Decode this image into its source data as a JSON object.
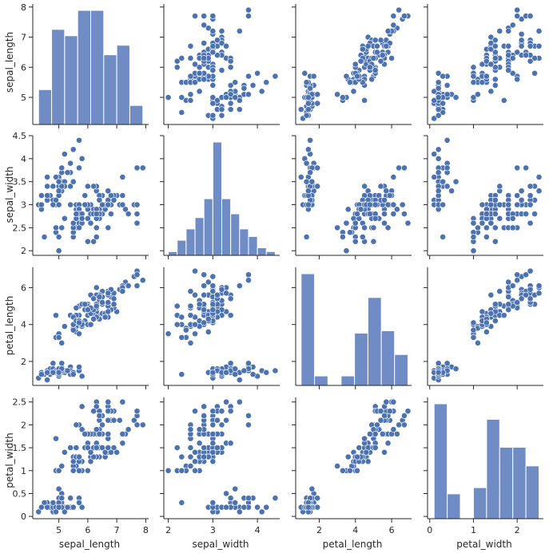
{
  "style": {
    "point_color": "#4c72b0",
    "bar_color": "#6f8dc4",
    "bar_edge": "#ffffff",
    "axis_color": "#262626",
    "point_edge": "#ffffff"
  },
  "chart_data": {
    "type": "scatter",
    "kind": "pairplot",
    "variables": [
      "sepal_length",
      "sepal_width",
      "petal_length",
      "petal_width"
    ],
    "grid": false,
    "axes": {
      "sepal_length": {
        "lim": [
          4.1,
          8.1
        ],
        "ticks": [
          5,
          6,
          7,
          8
        ]
      },
      "sepal_width": {
        "lim": [
          1.9,
          4.5
        ],
        "ticks": [
          2.0,
          2.5,
          3.0,
          3.5,
          4.0,
          4.5
        ],
        "ticks_x": [
          2,
          3,
          4
        ]
      },
      "petal_length": {
        "lim": [
          0.7,
          7.1
        ],
        "ticks": [
          2,
          4,
          6
        ]
      },
      "petal_width": {
        "lim": [
          -0.05,
          2.6
        ],
        "ticks": [
          0.0,
          0.5,
          1.0,
          1.5,
          2.0,
          2.5
        ],
        "ticks_x": [
          0,
          1,
          2
        ]
      }
    },
    "histograms": {
      "sepal_length": {
        "edges": [
          4.3,
          4.75,
          5.2,
          5.65,
          6.1,
          6.55,
          7.0,
          7.45,
          7.9
        ],
        "counts": [
          11,
          30,
          28,
          36,
          36,
          22,
          25,
          6
        ]
      },
      "sepal_width": {
        "edges": [
          2.0,
          2.2,
          2.4,
          2.6,
          2.8,
          3.0,
          3.2,
          3.4,
          3.6,
          3.8,
          4.0,
          4.2,
          4.4
        ],
        "counts": [
          1,
          4,
          7,
          10,
          15,
          30,
          15,
          11,
          7,
          5,
          2,
          1
        ]
      },
      "petal_length": {
        "edges": [
          1.0,
          1.74,
          2.48,
          3.21,
          3.95,
          4.69,
          5.43,
          6.16,
          6.9
        ],
        "counts": [
          47,
          4,
          0,
          4,
          22,
          37,
          23,
          13
        ]
      },
      "petal_width": {
        "edges": [
          0.1,
          0.4,
          0.7,
          1.0,
          1.3,
          1.6,
          1.9,
          2.2,
          2.5
        ],
        "counts": [
          37,
          8,
          0,
          10,
          32,
          23,
          23,
          17
        ]
      }
    },
    "points": [
      [
        5.1,
        3.5,
        1.4,
        0.2
      ],
      [
        4.9,
        3.0,
        1.4,
        0.2
      ],
      [
        4.7,
        3.2,
        1.3,
        0.2
      ],
      [
        4.6,
        3.1,
        1.5,
        0.2
      ],
      [
        5.0,
        3.6,
        1.4,
        0.2
      ],
      [
        5.4,
        3.9,
        1.7,
        0.4
      ],
      [
        4.6,
        3.4,
        1.4,
        0.3
      ],
      [
        5.0,
        3.4,
        1.5,
        0.2
      ],
      [
        4.4,
        2.9,
        1.4,
        0.2
      ],
      [
        4.9,
        3.1,
        1.5,
        0.1
      ],
      [
        5.4,
        3.7,
        1.5,
        0.2
      ],
      [
        4.8,
        3.4,
        1.6,
        0.2
      ],
      [
        4.8,
        3.0,
        1.4,
        0.1
      ],
      [
        4.3,
        3.0,
        1.1,
        0.1
      ],
      [
        5.8,
        4.0,
        1.2,
        0.2
      ],
      [
        5.7,
        4.4,
        1.5,
        0.4
      ],
      [
        5.4,
        3.9,
        1.3,
        0.4
      ],
      [
        5.1,
        3.5,
        1.4,
        0.3
      ],
      [
        5.7,
        3.8,
        1.7,
        0.3
      ],
      [
        5.1,
        3.8,
        1.5,
        0.3
      ],
      [
        5.4,
        3.4,
        1.7,
        0.2
      ],
      [
        5.1,
        3.7,
        1.5,
        0.4
      ],
      [
        4.6,
        3.6,
        1.0,
        0.2
      ],
      [
        5.1,
        3.3,
        1.7,
        0.5
      ],
      [
        4.8,
        3.4,
        1.9,
        0.2
      ],
      [
        5.0,
        3.0,
        1.6,
        0.2
      ],
      [
        5.0,
        3.4,
        1.6,
        0.4
      ],
      [
        5.2,
        3.5,
        1.5,
        0.2
      ],
      [
        5.2,
        3.4,
        1.4,
        0.2
      ],
      [
        4.7,
        3.2,
        1.6,
        0.2
      ],
      [
        4.8,
        3.1,
        1.6,
        0.2
      ],
      [
        5.4,
        3.4,
        1.5,
        0.4
      ],
      [
        5.2,
        4.1,
        1.5,
        0.1
      ],
      [
        5.5,
        4.2,
        1.4,
        0.2
      ],
      [
        4.9,
        3.1,
        1.5,
        0.2
      ],
      [
        5.0,
        3.2,
        1.2,
        0.2
      ],
      [
        5.5,
        3.5,
        1.3,
        0.2
      ],
      [
        4.9,
        3.6,
        1.4,
        0.1
      ],
      [
        4.4,
        3.0,
        1.3,
        0.2
      ],
      [
        5.1,
        3.4,
        1.5,
        0.2
      ],
      [
        5.0,
        3.5,
        1.3,
        0.3
      ],
      [
        4.5,
        2.3,
        1.3,
        0.3
      ],
      [
        4.4,
        3.2,
        1.3,
        0.2
      ],
      [
        5.0,
        3.5,
        1.6,
        0.6
      ],
      [
        5.1,
        3.8,
        1.9,
        0.4
      ],
      [
        4.8,
        3.0,
        1.4,
        0.3
      ],
      [
        5.1,
        3.8,
        1.6,
        0.2
      ],
      [
        4.6,
        3.2,
        1.4,
        0.2
      ],
      [
        5.3,
        3.7,
        1.5,
        0.2
      ],
      [
        5.0,
        3.3,
        1.4,
        0.2
      ],
      [
        7.0,
        3.2,
        4.7,
        1.4
      ],
      [
        6.4,
        3.2,
        4.5,
        1.5
      ],
      [
        6.9,
        3.1,
        4.9,
        1.5
      ],
      [
        5.5,
        2.3,
        4.0,
        1.3
      ],
      [
        6.5,
        2.8,
        4.6,
        1.5
      ],
      [
        5.7,
        2.8,
        4.5,
        1.3
      ],
      [
        6.3,
        3.3,
        4.7,
        1.6
      ],
      [
        4.9,
        2.4,
        3.3,
        1.0
      ],
      [
        6.6,
        2.9,
        4.6,
        1.3
      ],
      [
        5.2,
        2.7,
        3.9,
        1.4
      ],
      [
        5.0,
        2.0,
        3.5,
        1.0
      ],
      [
        5.9,
        3.0,
        4.2,
        1.5
      ],
      [
        6.0,
        2.2,
        4.0,
        1.0
      ],
      [
        6.1,
        2.9,
        4.7,
        1.4
      ],
      [
        5.6,
        2.9,
        3.6,
        1.3
      ],
      [
        6.7,
        3.1,
        4.4,
        1.4
      ],
      [
        5.6,
        3.0,
        4.5,
        1.5
      ],
      [
        5.8,
        2.7,
        4.1,
        1.0
      ],
      [
        6.2,
        2.2,
        4.5,
        1.5
      ],
      [
        5.6,
        2.5,
        3.9,
        1.1
      ],
      [
        5.9,
        3.2,
        4.8,
        1.8
      ],
      [
        6.1,
        2.8,
        4.0,
        1.3
      ],
      [
        6.3,
        2.5,
        4.9,
        1.5
      ],
      [
        6.1,
        2.8,
        4.7,
        1.2
      ],
      [
        6.4,
        2.9,
        4.3,
        1.3
      ],
      [
        6.6,
        3.0,
        4.4,
        1.4
      ],
      [
        6.8,
        2.8,
        4.8,
        1.4
      ],
      [
        6.7,
        3.0,
        5.0,
        1.7
      ],
      [
        6.0,
        2.9,
        4.5,
        1.5
      ],
      [
        5.7,
        2.6,
        3.5,
        1.0
      ],
      [
        5.5,
        2.4,
        3.8,
        1.1
      ],
      [
        5.5,
        2.4,
        3.7,
        1.0
      ],
      [
        5.8,
        2.7,
        3.9,
        1.2
      ],
      [
        6.0,
        2.7,
        5.1,
        1.6
      ],
      [
        5.4,
        3.0,
        4.5,
        1.5
      ],
      [
        6.0,
        3.4,
        4.5,
        1.6
      ],
      [
        6.7,
        3.1,
        4.7,
        1.5
      ],
      [
        6.3,
        2.3,
        4.4,
        1.3
      ],
      [
        5.6,
        3.0,
        4.1,
        1.3
      ],
      [
        5.5,
        2.5,
        4.0,
        1.3
      ],
      [
        5.5,
        2.6,
        4.4,
        1.2
      ],
      [
        6.1,
        3.0,
        4.6,
        1.4
      ],
      [
        5.8,
        2.6,
        4.0,
        1.2
      ],
      [
        5.0,
        2.3,
        3.3,
        1.0
      ],
      [
        5.6,
        2.7,
        4.2,
        1.3
      ],
      [
        5.7,
        3.0,
        4.2,
        1.2
      ],
      [
        5.7,
        2.9,
        4.2,
        1.3
      ],
      [
        6.2,
        2.9,
        4.3,
        1.3
      ],
      [
        5.1,
        2.5,
        3.0,
        1.1
      ],
      [
        5.7,
        2.8,
        4.1,
        1.3
      ],
      [
        6.3,
        3.3,
        6.0,
        2.5
      ],
      [
        5.8,
        2.7,
        5.1,
        1.9
      ],
      [
        7.1,
        3.0,
        5.9,
        2.1
      ],
      [
        6.3,
        2.9,
        5.6,
        1.8
      ],
      [
        6.5,
        3.0,
        5.8,
        2.2
      ],
      [
        7.6,
        3.0,
        6.6,
        2.1
      ],
      [
        4.9,
        2.5,
        4.5,
        1.7
      ],
      [
        7.3,
        2.9,
        6.3,
        1.8
      ],
      [
        6.7,
        2.5,
        5.8,
        1.8
      ],
      [
        7.2,
        3.6,
        6.1,
        2.5
      ],
      [
        6.5,
        3.2,
        5.1,
        2.0
      ],
      [
        6.4,
        2.7,
        5.3,
        1.9
      ],
      [
        6.8,
        3.0,
        5.5,
        2.1
      ],
      [
        5.7,
        2.5,
        5.0,
        2.0
      ],
      [
        5.8,
        2.8,
        5.1,
        2.4
      ],
      [
        6.4,
        3.2,
        5.3,
        2.3
      ],
      [
        6.5,
        3.0,
        5.5,
        1.8
      ],
      [
        7.7,
        3.8,
        6.7,
        2.2
      ],
      [
        7.7,
        2.6,
        6.9,
        2.3
      ],
      [
        6.0,
        2.2,
        5.0,
        1.5
      ],
      [
        6.9,
        3.2,
        5.7,
        2.3
      ],
      [
        5.6,
        2.8,
        4.9,
        2.0
      ],
      [
        7.7,
        2.8,
        6.7,
        2.0
      ],
      [
        6.3,
        2.7,
        4.9,
        1.8
      ],
      [
        6.7,
        3.3,
        5.7,
        2.1
      ],
      [
        7.2,
        3.2,
        6.0,
        1.8
      ],
      [
        6.2,
        2.8,
        4.8,
        1.8
      ],
      [
        6.1,
        3.0,
        4.9,
        1.8
      ],
      [
        6.4,
        2.8,
        5.6,
        2.1
      ],
      [
        7.2,
        3.0,
        5.8,
        1.6
      ],
      [
        7.4,
        2.8,
        6.1,
        1.9
      ],
      [
        7.9,
        3.8,
        6.4,
        2.0
      ],
      [
        6.4,
        2.8,
        5.6,
        2.2
      ],
      [
        6.3,
        2.8,
        5.1,
        1.5
      ],
      [
        6.1,
        2.6,
        5.6,
        1.4
      ],
      [
        7.7,
        3.0,
        6.1,
        2.3
      ],
      [
        6.3,
        3.4,
        5.6,
        2.4
      ],
      [
        6.4,
        3.1,
        5.5,
        1.8
      ],
      [
        6.0,
        3.0,
        4.8,
        1.8
      ],
      [
        6.9,
        3.1,
        5.4,
        2.1
      ],
      [
        6.7,
        3.1,
        5.6,
        2.4
      ],
      [
        6.9,
        3.1,
        5.1,
        2.3
      ],
      [
        5.8,
        2.7,
        5.1,
        1.9
      ],
      [
        6.8,
        3.2,
        5.9,
        2.3
      ],
      [
        6.7,
        3.3,
        5.7,
        2.5
      ],
      [
        6.7,
        3.0,
        5.2,
        2.3
      ],
      [
        6.3,
        2.5,
        5.0,
        1.9
      ],
      [
        6.5,
        3.0,
        5.2,
        2.0
      ],
      [
        6.2,
        3.4,
        5.4,
        2.3
      ],
      [
        5.9,
        3.0,
        5.1,
        1.8
      ]
    ]
  }
}
